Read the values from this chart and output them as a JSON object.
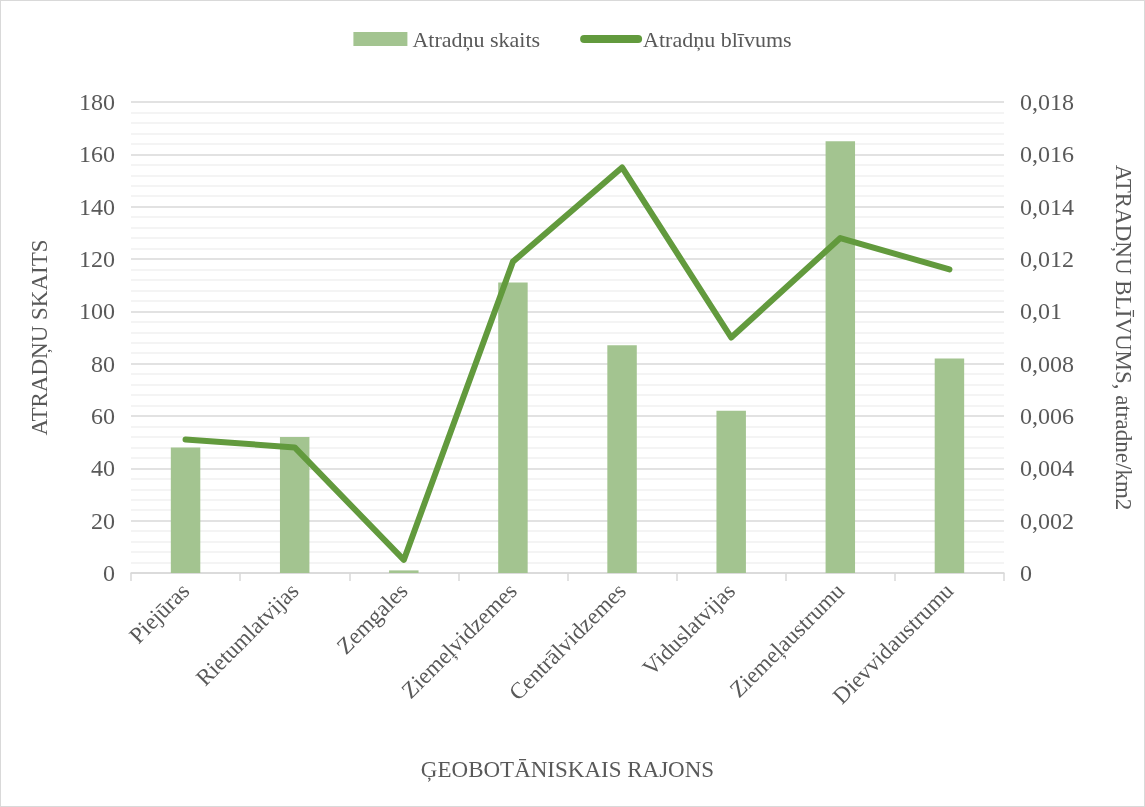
{
  "chart_data": {
    "type": "bar",
    "categories": [
      "Piejūras",
      "Rietumlatvijas",
      "Zemgales",
      "Ziemeļvidzemes",
      "Centrālvidzemes",
      "Viduslatvijas",
      "Ziemeļaustrumu",
      "Dievvidaustrumu"
    ],
    "xlabel": "ĢEOBOTĀNISKAIS RAJONS",
    "ylabel": "ATRADŅU SKAITS",
    "y2label": "ATRADŅU BLĪVUMS, atradne/km2",
    "series": [
      {
        "name": "Atradņu skaits",
        "color": "#a3c490",
        "values": [
          48,
          52,
          1,
          111,
          87,
          62,
          165,
          82
        ]
      },
      {
        "name": "Atradņu blīvums",
        "type": "line",
        "axis": "y2",
        "color": "#629a3d",
        "values": [
          0.0051,
          0.0048,
          0.0005,
          0.0119,
          0.0155,
          0.009,
          0.0128,
          0.0116
        ]
      }
    ],
    "ylim": [
      0,
      180
    ],
    "yticks": [
      0,
      20,
      40,
      60,
      80,
      100,
      120,
      140,
      160,
      180
    ],
    "y2lim": [
      0,
      0.018
    ],
    "y2ticks": [
      0,
      {
        "value": 0.002,
        "label": "0,002"
      },
      {
        "value": 0.004,
        "label": "0,004"
      },
      {
        "value": 0.006,
        "label": "0,006"
      },
      {
        "value": 0.008,
        "label": "0,008"
      },
      {
        "value": 0.01,
        "label": "0,01"
      },
      {
        "value": 0.012,
        "label": "0,012"
      },
      {
        "value": 0.014,
        "label": "0,014"
      },
      {
        "value": 0.016,
        "label": "0,016"
      },
      {
        "value": 0.018,
        "label": "0,018"
      }
    ],
    "grid": "y",
    "legend": "top",
    "marker": "none"
  }
}
